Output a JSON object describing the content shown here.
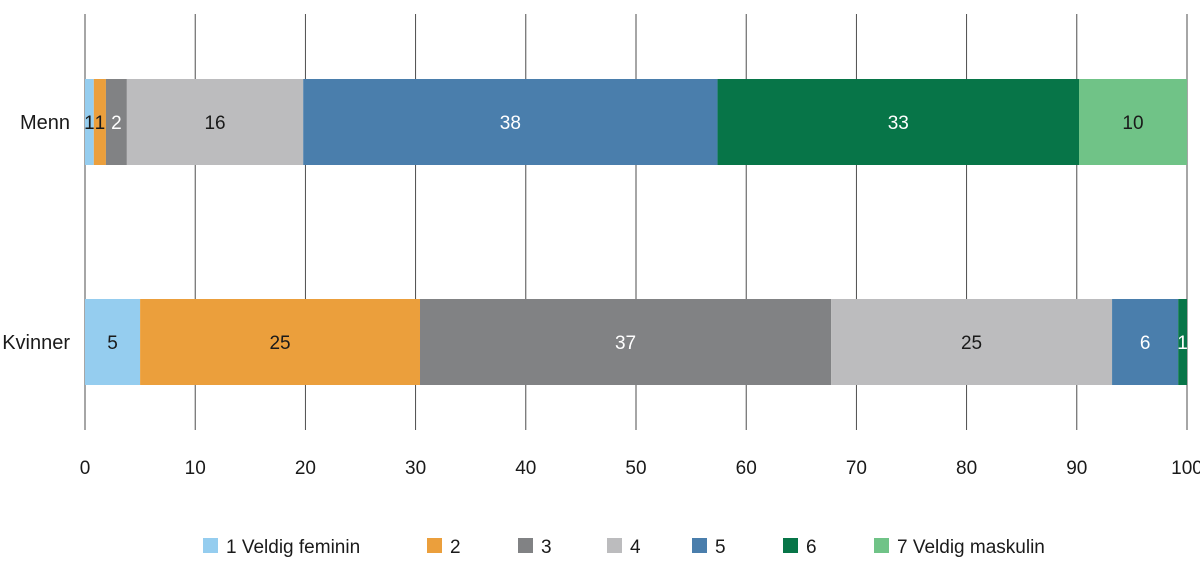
{
  "chart_data": {
    "type": "bar",
    "orientation": "horizontal",
    "stacked": true,
    "title": "",
    "xlabel": "",
    "ylabel": "",
    "xlim": [
      0,
      100
    ],
    "x_ticks": [
      "0",
      "10",
      "20",
      "30",
      "40",
      "50",
      "60",
      "70",
      "80",
      "90",
      "100"
    ],
    "grid": "vertical",
    "legend_position": "bottom",
    "categories": [
      "Menn",
      "Kvinner"
    ],
    "series": [
      {
        "name": "1 Veldig feminin",
        "color": "#95cdef",
        "values": [
          0.8,
          5
        ],
        "labels": [
          "1",
          "5"
        ]
      },
      {
        "name": "2",
        "color": "#eb9f3c",
        "values": [
          1.1,
          25.4
        ],
        "labels": [
          "1",
          "25"
        ]
      },
      {
        "name": "3",
        "color": "#818284",
        "values": [
          1.9,
          37.3
        ],
        "labels": [
          "2",
          "37"
        ]
      },
      {
        "name": "4",
        "color": "#bcbcbe",
        "values": [
          16,
          25.5
        ],
        "labels": [
          "16",
          "25"
        ]
      },
      {
        "name": "5",
        "color": "#4a7eac",
        "values": [
          37.6,
          6
        ],
        "labels": [
          "38",
          "6"
        ]
      },
      {
        "name": "6",
        "color": "#077548",
        "values": [
          32.8,
          0.8
        ],
        "labels": [
          "33",
          "1"
        ]
      },
      {
        "name": "7 Veldig maskulin",
        "color": "#70c387",
        "values": [
          9.8,
          0
        ],
        "labels": [
          "10",
          ""
        ]
      }
    ]
  }
}
